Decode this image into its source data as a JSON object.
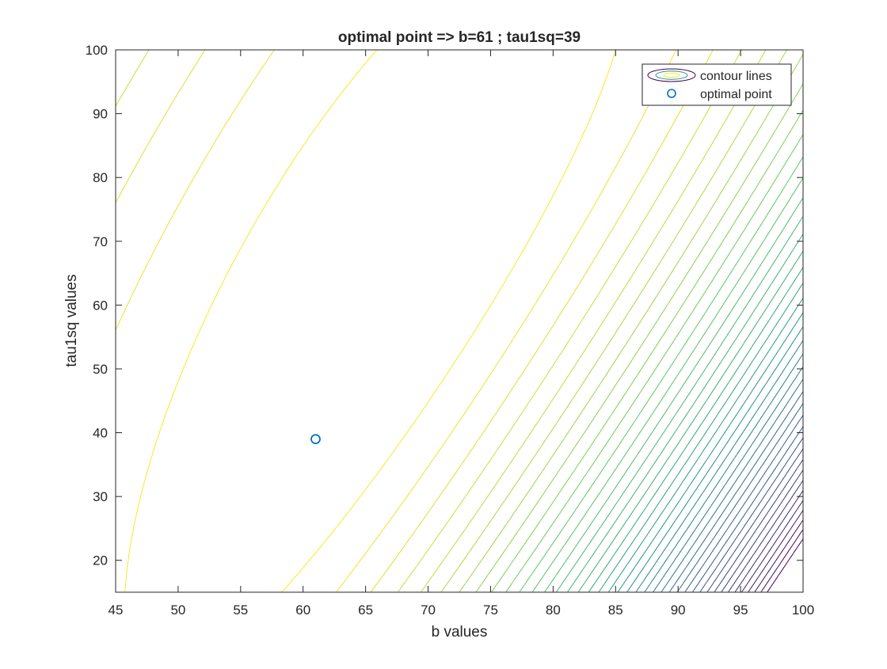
{
  "chart_data": {
    "type": "contour",
    "title": "optimal point => b=61 ; tau1sq=39",
    "xlabel": "b values",
    "ylabel": "tau1sq values",
    "xlim": [
      45,
      100
    ],
    "ylim": [
      15,
      100
    ],
    "xticks": [
      45,
      50,
      55,
      60,
      65,
      70,
      75,
      80,
      85,
      90,
      95,
      100
    ],
    "yticks": [
      20,
      30,
      40,
      50,
      60,
      70,
      80,
      90,
      100
    ],
    "grid": false,
    "legend": {
      "placement": "top-right",
      "entries": [
        "contour lines",
        "optimal point"
      ]
    },
    "optimal_point": {
      "x": 61,
      "y": 39,
      "color": "#0072bd"
    },
    "contour_colormap": [
      "#440154",
      "#3b528b",
      "#21918c",
      "#5ec962",
      "#fde725"
    ],
    "contour_levels": 40
  }
}
